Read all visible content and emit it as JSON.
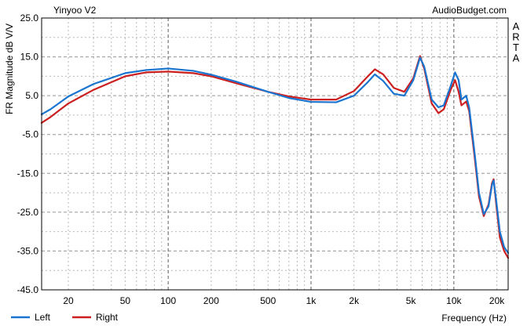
{
  "chart_data": {
    "type": "line",
    "title": "Yinyoo V2",
    "source_label": "AudioBudget.com",
    "side_label": "ARTA",
    "xlabel": "Frequency (Hz)",
    "ylabel": "FR Magnitude dB V/V",
    "x_scale": "log",
    "xlim": [
      13,
      24000
    ],
    "ylim": [
      -45,
      25
    ],
    "grid": true,
    "legend_position": "bottom-left",
    "x_ticks": [
      {
        "value": 20,
        "label": "20"
      },
      {
        "value": 50,
        "label": "50"
      },
      {
        "value": 100,
        "label": "100"
      },
      {
        "value": 200,
        "label": "200"
      },
      {
        "value": 500,
        "label": "500"
      },
      {
        "value": 1000,
        "label": "1k"
      },
      {
        "value": 2000,
        "label": "2k"
      },
      {
        "value": 5000,
        "label": "5k"
      },
      {
        "value": 10000,
        "label": "10k"
      },
      {
        "value": 20000,
        "label": "20k"
      }
    ],
    "y_ticks": [
      {
        "value": 25,
        "label": "25.0"
      },
      {
        "value": 15,
        "label": "15.0"
      },
      {
        "value": 5,
        "label": "5.0"
      },
      {
        "value": -5,
        "label": "-5.0"
      },
      {
        "value": -15,
        "label": "-15.0"
      },
      {
        "value": -25,
        "label": "-25.0"
      },
      {
        "value": -35,
        "label": "-35.0"
      },
      {
        "value": -45,
        "label": "-45.0"
      }
    ],
    "series": [
      {
        "name": "Left",
        "color": "#1a75d1",
        "points": [
          [
            13,
            0.2
          ],
          [
            15,
            1.5
          ],
          [
            20,
            4.8
          ],
          [
            30,
            8.0
          ],
          [
            50,
            10.8
          ],
          [
            70,
            11.6
          ],
          [
            100,
            12.0
          ],
          [
            150,
            11.4
          ],
          [
            200,
            10.4
          ],
          [
            300,
            8.6
          ],
          [
            500,
            6.0
          ],
          [
            700,
            4.4
          ],
          [
            1000,
            3.4
          ],
          [
            1500,
            3.3
          ],
          [
            2000,
            5.0
          ],
          [
            2500,
            8.5
          ],
          [
            2800,
            10.5
          ],
          [
            3200,
            8.8
          ],
          [
            3800,
            5.5
          ],
          [
            4500,
            5.0
          ],
          [
            5200,
            9.0
          ],
          [
            5800,
            14.8
          ],
          [
            6200,
            12.5
          ],
          [
            7000,
            4.0
          ],
          [
            7800,
            2.0
          ],
          [
            8500,
            2.5
          ],
          [
            9500,
            7.5
          ],
          [
            10200,
            11.0
          ],
          [
            10800,
            9.0
          ],
          [
            11300,
            4.0
          ],
          [
            12200,
            5.0
          ],
          [
            12800,
            2.0
          ],
          [
            14000,
            -10.0
          ],
          [
            15000,
            -20.0
          ],
          [
            16200,
            -25.5
          ],
          [
            17500,
            -23.5
          ],
          [
            18500,
            -18.0
          ],
          [
            19000,
            -16.8
          ],
          [
            19800,
            -22.0
          ],
          [
            21000,
            -30.0
          ],
          [
            22500,
            -34.0
          ],
          [
            24000,
            -35.5
          ]
        ]
      },
      {
        "name": "Right",
        "color": "#cc1f1f",
        "points": [
          [
            13,
            -2.0
          ],
          [
            15,
            -0.5
          ],
          [
            20,
            3.0
          ],
          [
            30,
            6.5
          ],
          [
            50,
            10.0
          ],
          [
            70,
            11.0
          ],
          [
            100,
            11.2
          ],
          [
            150,
            10.8
          ],
          [
            200,
            10.0
          ],
          [
            300,
            8.2
          ],
          [
            500,
            6.0
          ],
          [
            700,
            4.8
          ],
          [
            1000,
            4.0
          ],
          [
            1500,
            4.0
          ],
          [
            2000,
            6.2
          ],
          [
            2500,
            10.0
          ],
          [
            2800,
            11.8
          ],
          [
            3200,
            10.5
          ],
          [
            3800,
            7.0
          ],
          [
            4500,
            6.0
          ],
          [
            5200,
            9.5
          ],
          [
            5800,
            15.2
          ],
          [
            6200,
            12.0
          ],
          [
            7000,
            3.0
          ],
          [
            7800,
            0.5
          ],
          [
            8500,
            1.5
          ],
          [
            9500,
            6.5
          ],
          [
            10200,
            9.0
          ],
          [
            10800,
            6.0
          ],
          [
            11300,
            2.5
          ],
          [
            12200,
            3.5
          ],
          [
            12800,
            1.0
          ],
          [
            14000,
            -11.0
          ],
          [
            15000,
            -21.0
          ],
          [
            16200,
            -26.0
          ],
          [
            17500,
            -23.0
          ],
          [
            18500,
            -17.5
          ],
          [
            19000,
            -16.5
          ],
          [
            19800,
            -23.0
          ],
          [
            21000,
            -31.5
          ],
          [
            22500,
            -35.0
          ],
          [
            24000,
            -36.8
          ]
        ]
      }
    ]
  }
}
